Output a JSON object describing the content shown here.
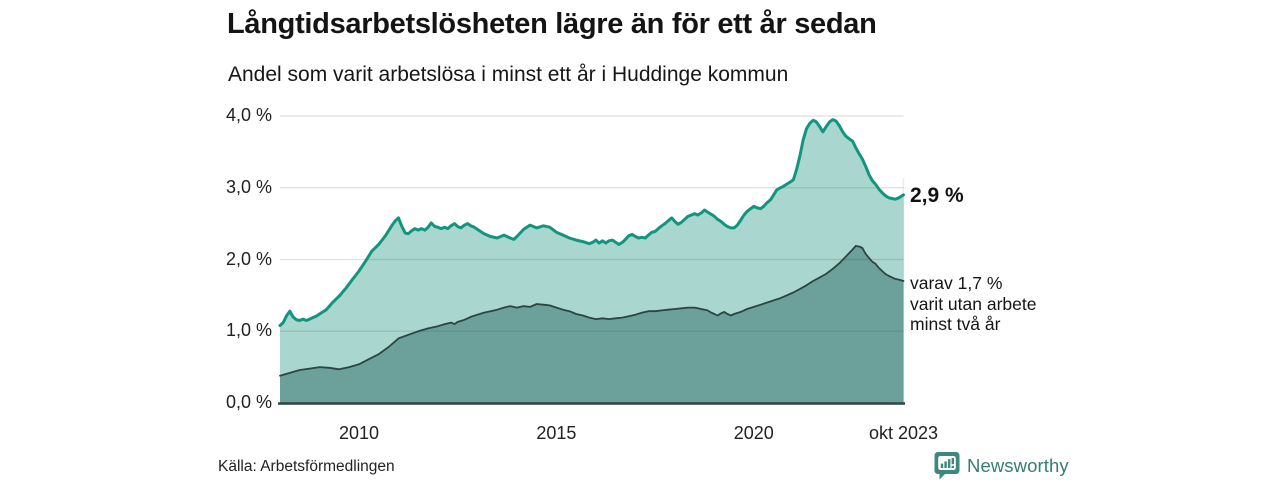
{
  "header": {
    "title": "Långtidsarbetslösheten lägre än för ett år sedan",
    "subtitle": "Andel som varit arbetslösa i minst ett år i Huddinge kommun"
  },
  "footer": {
    "source": "Källa: Arbetsförmedlingen",
    "brand": "Newsworthy"
  },
  "annotations": {
    "end_value": "2,9 %",
    "sub_series_line1": "varav 1,7 %",
    "sub_series_line2": "varit utan arbete",
    "sub_series_line3": "minst två år"
  },
  "colors": {
    "total_line": "#12957f",
    "total_fill": "#a9d6ce",
    "sub_line": "#2c4541",
    "sub_fill": "#6ba19a",
    "grid": "rgba(45,69,65,0.16)",
    "baseline": "#33433f",
    "brand": "#357d74"
  },
  "chart_data": {
    "type": "area",
    "title": "Långtidsarbetslösheten lägre än för ett år sedan",
    "subtitle": "Andel som varit arbetslösa i minst ett år i Huddinge kommun",
    "xlabel": "",
    "ylabel": "",
    "xlim": [
      2008.0,
      2023.79
    ],
    "ylim": [
      0,
      4.0
    ],
    "grid": true,
    "legend": "none (direct labels at line ends)",
    "y_ticks": [
      {
        "value": 4.0,
        "label": "4,0 %"
      },
      {
        "value": 3.0,
        "label": "3,0 %"
      },
      {
        "value": 2.0,
        "label": "2,0 %"
      },
      {
        "value": 1.0,
        "label": "1,0 %"
      },
      {
        "value": 0.0,
        "label": "0,0 %"
      }
    ],
    "x_ticks": [
      {
        "value": 2010,
        "label": "2010"
      },
      {
        "value": 2015,
        "label": "2015"
      },
      {
        "value": 2020,
        "label": "2020"
      },
      {
        "value": 2023.79,
        "label": "okt 2023"
      }
    ],
    "series": [
      {
        "id": "total",
        "description": "arbetslösa minst ett år (slutvärde 2,9 %)",
        "end_label": "2,9 %",
        "points": [
          [
            2008.0,
            1.08
          ],
          [
            2008.08,
            1.12
          ],
          [
            2008.17,
            1.22
          ],
          [
            2008.25,
            1.28
          ],
          [
            2008.33,
            1.2
          ],
          [
            2008.42,
            1.16
          ],
          [
            2008.5,
            1.15
          ],
          [
            2008.58,
            1.17
          ],
          [
            2008.67,
            1.15
          ],
          [
            2008.75,
            1.17
          ],
          [
            2008.83,
            1.19
          ],
          [
            2008.92,
            1.21
          ],
          [
            2009.0,
            1.24
          ],
          [
            2009.17,
            1.3
          ],
          [
            2009.33,
            1.4
          ],
          [
            2009.5,
            1.49
          ],
          [
            2009.67,
            1.6
          ],
          [
            2009.83,
            1.72
          ],
          [
            2010.0,
            1.84
          ],
          [
            2010.17,
            1.98
          ],
          [
            2010.33,
            2.12
          ],
          [
            2010.5,
            2.21
          ],
          [
            2010.67,
            2.33
          ],
          [
            2010.83,
            2.47
          ],
          [
            2010.92,
            2.54
          ],
          [
            2011.0,
            2.58
          ],
          [
            2011.08,
            2.47
          ],
          [
            2011.17,
            2.37
          ],
          [
            2011.25,
            2.36
          ],
          [
            2011.33,
            2.4
          ],
          [
            2011.42,
            2.43
          ],
          [
            2011.5,
            2.41
          ],
          [
            2011.58,
            2.43
          ],
          [
            2011.67,
            2.41
          ],
          [
            2011.75,
            2.45
          ],
          [
            2011.83,
            2.51
          ],
          [
            2011.92,
            2.46
          ],
          [
            2012.0,
            2.45
          ],
          [
            2012.08,
            2.43
          ],
          [
            2012.17,
            2.45
          ],
          [
            2012.25,
            2.43
          ],
          [
            2012.33,
            2.47
          ],
          [
            2012.42,
            2.5
          ],
          [
            2012.5,
            2.46
          ],
          [
            2012.58,
            2.44
          ],
          [
            2012.67,
            2.48
          ],
          [
            2012.75,
            2.5
          ],
          [
            2012.83,
            2.47
          ],
          [
            2012.92,
            2.45
          ],
          [
            2013.0,
            2.42
          ],
          [
            2013.17,
            2.36
          ],
          [
            2013.33,
            2.32
          ],
          [
            2013.5,
            2.3
          ],
          [
            2013.67,
            2.34
          ],
          [
            2013.83,
            2.3
          ],
          [
            2013.92,
            2.28
          ],
          [
            2014.0,
            2.32
          ],
          [
            2014.17,
            2.42
          ],
          [
            2014.33,
            2.48
          ],
          [
            2014.5,
            2.44
          ],
          [
            2014.67,
            2.47
          ],
          [
            2014.83,
            2.45
          ],
          [
            2015.0,
            2.38
          ],
          [
            2015.17,
            2.34
          ],
          [
            2015.33,
            2.3
          ],
          [
            2015.5,
            2.27
          ],
          [
            2015.67,
            2.25
          ],
          [
            2015.83,
            2.22
          ],
          [
            2015.92,
            2.24
          ],
          [
            2016.0,
            2.27
          ],
          [
            2016.08,
            2.23
          ],
          [
            2016.17,
            2.26
          ],
          [
            2016.25,
            2.23
          ],
          [
            2016.33,
            2.26
          ],
          [
            2016.42,
            2.27
          ],
          [
            2016.5,
            2.24
          ],
          [
            2016.58,
            2.21
          ],
          [
            2016.67,
            2.24
          ],
          [
            2016.75,
            2.28
          ],
          [
            2016.83,
            2.33
          ],
          [
            2016.92,
            2.35
          ],
          [
            2017.0,
            2.32
          ],
          [
            2017.08,
            2.3
          ],
          [
            2017.17,
            2.31
          ],
          [
            2017.25,
            2.3
          ],
          [
            2017.33,
            2.34
          ],
          [
            2017.42,
            2.38
          ],
          [
            2017.5,
            2.39
          ],
          [
            2017.58,
            2.43
          ],
          [
            2017.67,
            2.47
          ],
          [
            2017.75,
            2.5
          ],
          [
            2017.83,
            2.54
          ],
          [
            2017.92,
            2.58
          ],
          [
            2018.0,
            2.53
          ],
          [
            2018.08,
            2.49
          ],
          [
            2018.17,
            2.52
          ],
          [
            2018.25,
            2.56
          ],
          [
            2018.33,
            2.6
          ],
          [
            2018.42,
            2.62
          ],
          [
            2018.5,
            2.64
          ],
          [
            2018.58,
            2.62
          ],
          [
            2018.67,
            2.65
          ],
          [
            2018.75,
            2.69
          ],
          [
            2018.83,
            2.66
          ],
          [
            2018.92,
            2.63
          ],
          [
            2019.0,
            2.6
          ],
          [
            2019.08,
            2.56
          ],
          [
            2019.17,
            2.53
          ],
          [
            2019.25,
            2.49
          ],
          [
            2019.33,
            2.46
          ],
          [
            2019.42,
            2.44
          ],
          [
            2019.5,
            2.44
          ],
          [
            2019.58,
            2.48
          ],
          [
            2019.67,
            2.55
          ],
          [
            2019.75,
            2.62
          ],
          [
            2019.83,
            2.67
          ],
          [
            2019.92,
            2.71
          ],
          [
            2020.0,
            2.74
          ],
          [
            2020.08,
            2.72
          ],
          [
            2020.17,
            2.71
          ],
          [
            2020.25,
            2.74
          ],
          [
            2020.33,
            2.79
          ],
          [
            2020.42,
            2.83
          ],
          [
            2020.5,
            2.9
          ],
          [
            2020.58,
            2.97
          ],
          [
            2020.67,
            3.0
          ],
          [
            2020.75,
            3.02
          ],
          [
            2020.83,
            3.05
          ],
          [
            2020.92,
            3.08
          ],
          [
            2021.0,
            3.11
          ],
          [
            2021.08,
            3.25
          ],
          [
            2021.17,
            3.45
          ],
          [
            2021.25,
            3.67
          ],
          [
            2021.33,
            3.82
          ],
          [
            2021.42,
            3.9
          ],
          [
            2021.5,
            3.94
          ],
          [
            2021.58,
            3.92
          ],
          [
            2021.67,
            3.85
          ],
          [
            2021.75,
            3.78
          ],
          [
            2021.83,
            3.85
          ],
          [
            2021.92,
            3.92
          ],
          [
            2022.0,
            3.95
          ],
          [
            2022.08,
            3.93
          ],
          [
            2022.17,
            3.86
          ],
          [
            2022.25,
            3.78
          ],
          [
            2022.33,
            3.72
          ],
          [
            2022.42,
            3.68
          ],
          [
            2022.5,
            3.65
          ],
          [
            2022.58,
            3.56
          ],
          [
            2022.67,
            3.47
          ],
          [
            2022.75,
            3.4
          ],
          [
            2022.83,
            3.3
          ],
          [
            2022.92,
            3.18
          ],
          [
            2023.0,
            3.1
          ],
          [
            2023.08,
            3.05
          ],
          [
            2023.17,
            2.98
          ],
          [
            2023.25,
            2.93
          ],
          [
            2023.33,
            2.89
          ],
          [
            2023.42,
            2.86
          ],
          [
            2023.5,
            2.85
          ],
          [
            2023.58,
            2.84
          ],
          [
            2023.67,
            2.86
          ],
          [
            2023.79,
            2.9
          ]
        ]
      },
      {
        "id": "two_years",
        "description": "varav utan arbete minst två år (slutvärde 1,7 %)",
        "end_label": "varav 1,7 % varit utan arbete minst två år",
        "points": [
          [
            2008.0,
            0.38
          ],
          [
            2008.25,
            0.42
          ],
          [
            2008.5,
            0.46
          ],
          [
            2008.75,
            0.48
          ],
          [
            2009.0,
            0.5
          ],
          [
            2009.25,
            0.49
          ],
          [
            2009.5,
            0.47
          ],
          [
            2009.75,
            0.5
          ],
          [
            2010.0,
            0.54
          ],
          [
            2010.25,
            0.61
          ],
          [
            2010.5,
            0.68
          ],
          [
            2010.75,
            0.78
          ],
          [
            2011.0,
            0.9
          ],
          [
            2011.25,
            0.95
          ],
          [
            2011.5,
            1.0
          ],
          [
            2011.75,
            1.04
          ],
          [
            2012.0,
            1.07
          ],
          [
            2012.17,
            1.1
          ],
          [
            2012.33,
            1.12
          ],
          [
            2012.42,
            1.1
          ],
          [
            2012.5,
            1.13
          ],
          [
            2012.67,
            1.16
          ],
          [
            2012.83,
            1.2
          ],
          [
            2013.0,
            1.23
          ],
          [
            2013.17,
            1.26
          ],
          [
            2013.33,
            1.28
          ],
          [
            2013.5,
            1.3
          ],
          [
            2013.67,
            1.33
          ],
          [
            2013.83,
            1.35
          ],
          [
            2014.0,
            1.33
          ],
          [
            2014.17,
            1.35
          ],
          [
            2014.33,
            1.34
          ],
          [
            2014.5,
            1.38
          ],
          [
            2014.67,
            1.37
          ],
          [
            2014.83,
            1.36
          ],
          [
            2015.0,
            1.33
          ],
          [
            2015.17,
            1.3
          ],
          [
            2015.33,
            1.28
          ],
          [
            2015.5,
            1.24
          ],
          [
            2015.67,
            1.22
          ],
          [
            2015.83,
            1.19
          ],
          [
            2016.0,
            1.17
          ],
          [
            2016.17,
            1.18
          ],
          [
            2016.33,
            1.17
          ],
          [
            2016.5,
            1.18
          ],
          [
            2016.67,
            1.19
          ],
          [
            2016.83,
            1.21
          ],
          [
            2017.0,
            1.23
          ],
          [
            2017.17,
            1.26
          ],
          [
            2017.33,
            1.28
          ],
          [
            2017.5,
            1.28
          ],
          [
            2017.67,
            1.29
          ],
          [
            2017.83,
            1.3
          ],
          [
            2018.0,
            1.31
          ],
          [
            2018.17,
            1.32
          ],
          [
            2018.33,
            1.33
          ],
          [
            2018.5,
            1.33
          ],
          [
            2018.67,
            1.31
          ],
          [
            2018.83,
            1.29
          ],
          [
            2018.92,
            1.26
          ],
          [
            2019.0,
            1.24
          ],
          [
            2019.08,
            1.22
          ],
          [
            2019.17,
            1.25
          ],
          [
            2019.25,
            1.27
          ],
          [
            2019.33,
            1.24
          ],
          [
            2019.42,
            1.22
          ],
          [
            2019.5,
            1.24
          ],
          [
            2019.67,
            1.27
          ],
          [
            2019.83,
            1.31
          ],
          [
            2020.0,
            1.34
          ],
          [
            2020.17,
            1.37
          ],
          [
            2020.33,
            1.4
          ],
          [
            2020.5,
            1.43
          ],
          [
            2020.67,
            1.46
          ],
          [
            2020.83,
            1.5
          ],
          [
            2021.0,
            1.54
          ],
          [
            2021.17,
            1.59
          ],
          [
            2021.33,
            1.64
          ],
          [
            2021.5,
            1.7
          ],
          [
            2021.67,
            1.75
          ],
          [
            2021.83,
            1.8
          ],
          [
            2022.0,
            1.87
          ],
          [
            2022.17,
            1.95
          ],
          [
            2022.33,
            2.04
          ],
          [
            2022.5,
            2.14
          ],
          [
            2022.58,
            2.19
          ],
          [
            2022.67,
            2.18
          ],
          [
            2022.75,
            2.16
          ],
          [
            2022.83,
            2.08
          ],
          [
            2022.92,
            2.02
          ],
          [
            2023.0,
            1.97
          ],
          [
            2023.08,
            1.94
          ],
          [
            2023.17,
            1.88
          ],
          [
            2023.25,
            1.84
          ],
          [
            2023.33,
            1.8
          ],
          [
            2023.42,
            1.77
          ],
          [
            2023.5,
            1.75
          ],
          [
            2023.58,
            1.73
          ],
          [
            2023.67,
            1.72
          ],
          [
            2023.79,
            1.7
          ]
        ]
      }
    ]
  }
}
